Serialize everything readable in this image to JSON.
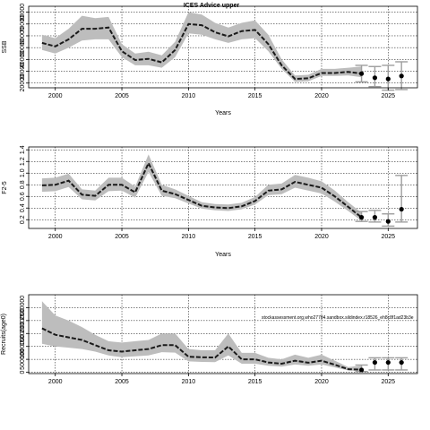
{
  "figure": {
    "title": "ICES Advice upper",
    "note": "stockassessment.org,who27784.sandbox.sildindex.r18526_eh8c8f1ad23b3e"
  },
  "chart_data": [
    {
      "type": "line",
      "name": "ssb",
      "ylabel": "SSB",
      "xlabel": "Years",
      "xlim": [
        1998,
        2027.2
      ],
      "ylim": [
        16000,
        85000
      ],
      "yticks": [
        20000,
        30000,
        40000,
        50000,
        60000,
        70000,
        80000
      ],
      "ytick_labels": [
        "20000",
        "30000",
        "40000",
        "50000",
        "60000",
        "70000",
        "80000"
      ],
      "xticks": [
        2000,
        2005,
        2010,
        2015,
        2020,
        2025
      ],
      "grid": true,
      "x": [
        1999,
        2000,
        2001,
        2002,
        2003,
        2004,
        2005,
        2006,
        2007,
        2008,
        2009,
        2010,
        2011,
        2012,
        2013,
        2014,
        2015,
        2016,
        2017,
        2018,
        2019,
        2020,
        2021,
        2022,
        2023
      ],
      "estimate": [
        54000,
        51000,
        57000,
        66000,
        66000,
        67000,
        47000,
        39500,
        40500,
        37500,
        48000,
        70000,
        69000,
        63000,
        59500,
        64000,
        65000,
        53000,
        35000,
        23500,
        24000,
        28500,
        28500,
        29500,
        28000
      ],
      "lower": [
        48000,
        45000,
        50000,
        56000,
        57000,
        57000,
        42000,
        35000,
        35000,
        33000,
        42000,
        62000,
        61000,
        57000,
        54000,
        57000,
        58000,
        47000,
        32000,
        21000,
        21500,
        26000,
        26000,
        26500,
        25000
      ],
      "upper": [
        61000,
        58000,
        66000,
        77000,
        75000,
        76000,
        53000,
        45000,
        46500,
        43500,
        55000,
        80000,
        78000,
        71000,
        67000,
        71000,
        73000,
        61000,
        40000,
        26500,
        27000,
        32000,
        32000,
        33000,
        34000
      ],
      "forecast": [
        {
          "x": 2023,
          "y": 28000,
          "lo": 21000,
          "hi": 35000
        },
        {
          "x": 2024,
          "y": 24500,
          "lo": 17000,
          "hi": 34000
        },
        {
          "x": 2025,
          "y": 23500,
          "lo": 14000,
          "hi": 35000
        },
        {
          "x": 2026,
          "y": 26000,
          "lo": 14500,
          "hi": 38000
        }
      ]
    },
    {
      "type": "line",
      "name": "fbar",
      "ylabel": "F2-5",
      "xlabel": "Years",
      "xlim": [
        1998,
        2027.2
      ],
      "ylim": [
        0.05,
        1.45
      ],
      "yticks": [
        0.2,
        0.4,
        0.6,
        0.8,
        1.0,
        1.2,
        1.4
      ],
      "ytick_labels": [
        "0.2",
        "0.4",
        "0.6",
        "0.8",
        "1.0",
        "1.2",
        "1.4"
      ],
      "xticks": [
        2000,
        2005,
        2010,
        2015,
        2020,
        2025
      ],
      "grid": true,
      "x": [
        1999,
        2000,
        2001,
        2002,
        2003,
        2004,
        2005,
        2006,
        2007,
        2008,
        2009,
        2010,
        2011,
        2012,
        2013,
        2014,
        2015,
        2016,
        2017,
        2018,
        2019,
        2020,
        2021,
        2022,
        2023
      ],
      "estimate": [
        0.79,
        0.8,
        0.87,
        0.63,
        0.61,
        0.8,
        0.8,
        0.67,
        1.17,
        0.7,
        0.64,
        0.54,
        0.44,
        0.41,
        0.4,
        0.43,
        0.52,
        0.7,
        0.72,
        0.85,
        0.8,
        0.75,
        0.6,
        0.42,
        0.24
      ],
      "lower": [
        0.68,
        0.69,
        0.76,
        0.55,
        0.53,
        0.69,
        0.7,
        0.58,
        1.02,
        0.61,
        0.57,
        0.48,
        0.39,
        0.36,
        0.35,
        0.38,
        0.46,
        0.62,
        0.64,
        0.75,
        0.7,
        0.65,
        0.51,
        0.35,
        0.18
      ],
      "upper": [
        0.91,
        0.92,
        0.99,
        0.72,
        0.7,
        0.92,
        0.92,
        0.77,
        1.32,
        0.8,
        0.72,
        0.61,
        0.5,
        0.47,
        0.46,
        0.49,
        0.59,
        0.8,
        0.82,
        0.97,
        0.92,
        0.86,
        0.7,
        0.5,
        0.32
      ],
      "forecast": [
        {
          "x": 2023,
          "y": 0.24,
          "lo": 0.17,
          "hi": 0.34
        },
        {
          "x": 2024,
          "y": 0.24,
          "lo": 0.16,
          "hi": 0.36
        },
        {
          "x": 2025,
          "y": 0.17,
          "lo": 0.09,
          "hi": 0.3
        },
        {
          "x": 2026,
          "y": 0.38,
          "lo": 0.16,
          "hi": 0.96
        }
      ]
    },
    {
      "type": "line",
      "name": "recruitment",
      "ylabel": "Recruits(age0)",
      "xlabel": "",
      "xlim": [
        1998,
        2027.2
      ],
      "ylim": [
        -50000,
        3000000
      ],
      "yticks": [
        0,
        500000,
        1000000,
        1500000,
        2000000,
        2500000
      ],
      "ytick_labels": [
        "0",
        "500000",
        "1000000",
        "1500000",
        "2000000",
        "2500000"
      ],
      "xticks": [
        2000,
        2005,
        2010,
        2015,
        2020,
        2025
      ],
      "grid": true,
      "x": [
        1999,
        2000,
        2001,
        2002,
        2003,
        2004,
        2005,
        2006,
        2007,
        2008,
        2009,
        2010,
        2011,
        2012,
        2013,
        2014,
        2015,
        2016,
        2017,
        2018,
        2019,
        2020,
        2021,
        2022,
        2023
      ],
      "estimate": [
        1700000,
        1450000,
        1350000,
        1250000,
        1050000,
        850000,
        800000,
        850000,
        900000,
        1050000,
        1050000,
        600000,
        580000,
        570000,
        1000000,
        500000,
        500000,
        380000,
        330000,
        450000,
        370000,
        450000,
        290000,
        120000,
        100000
      ],
      "lower": [
        1100000,
        1000000,
        950000,
        900000,
        800000,
        650000,
        580000,
        620000,
        650000,
        780000,
        760000,
        420000,
        400000,
        390000,
        650000,
        330000,
        330000,
        250000,
        220000,
        300000,
        250000,
        300000,
        190000,
        70000,
        50000
      ],
      "upper": [
        2750000,
        2200000,
        2000000,
        1750000,
        1450000,
        1200000,
        1150000,
        1200000,
        1250000,
        1500000,
        1500000,
        900000,
        850000,
        850000,
        1500000,
        750000,
        750000,
        560000,
        500000,
        680000,
        560000,
        680000,
        450000,
        200000,
        260000
      ],
      "forecast": [
        {
          "x": 2023,
          "y": 90000,
          "lo": 30000,
          "hi": 280000
        },
        {
          "x": 2024,
          "y": 380000,
          "lo": 90000,
          "hi": 560000
        },
        {
          "x": 2025,
          "y": 380000,
          "lo": 90000,
          "hi": 560000
        },
        {
          "x": 2026,
          "y": 380000,
          "lo": 90000,
          "hi": 560000
        }
      ]
    }
  ]
}
